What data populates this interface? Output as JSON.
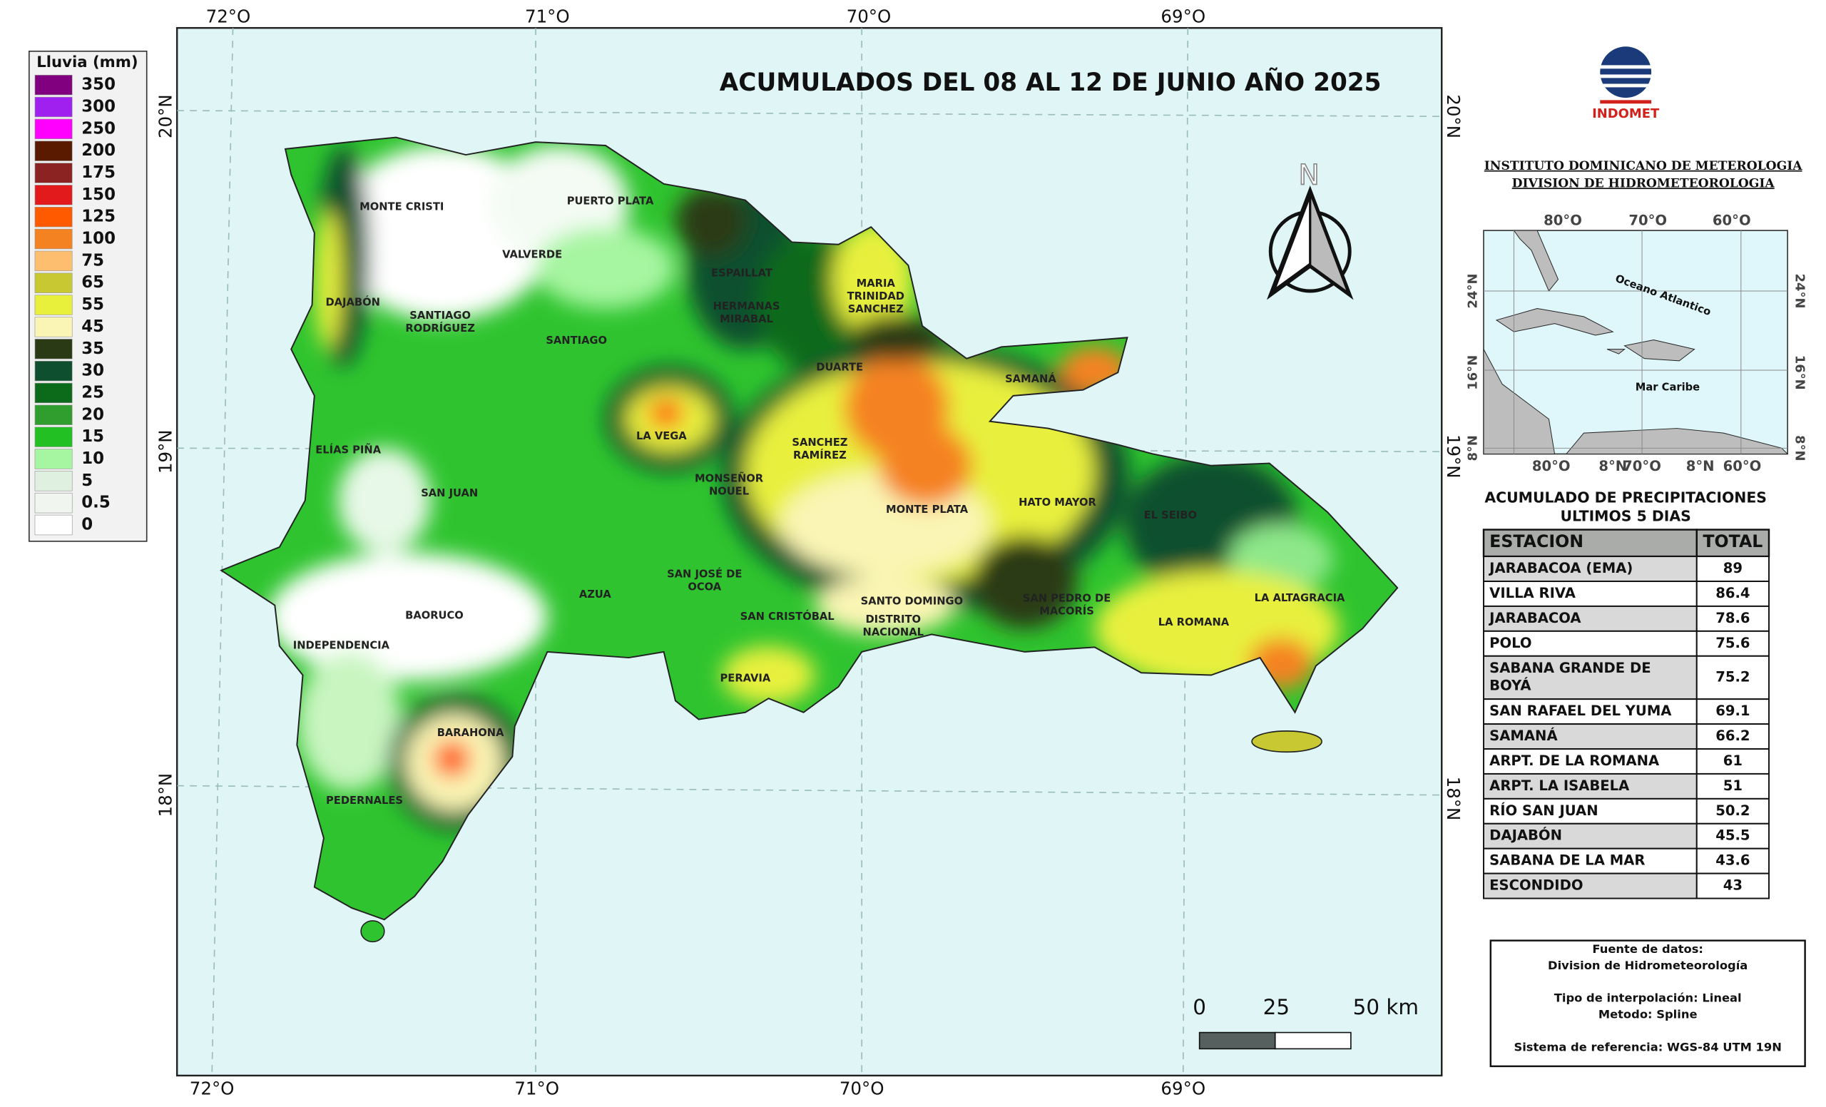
{
  "title": "ACUMULADOS DEL 08 AL 12  DE JUNIO AÑO 2025",
  "legend": {
    "title": "Lluvia (mm)",
    "items": [
      {
        "label": "350",
        "color": "#800080"
      },
      {
        "label": "300",
        "color": "#a020f0"
      },
      {
        "label": "250",
        "color": "#ff00ff"
      },
      {
        "label": "200",
        "color": "#5a1a00"
      },
      {
        "label": "175",
        "color": "#8b2323"
      },
      {
        "label": "150",
        "color": "#e31a1c"
      },
      {
        "label": "125",
        "color": "#ff5a00"
      },
      {
        "label": "100",
        "color": "#f58220"
      },
      {
        "label": "75",
        "color": "#fdbf6f"
      },
      {
        "label": "65",
        "color": "#c8c832"
      },
      {
        "label": "55",
        "color": "#e8f03c"
      },
      {
        "label": "45",
        "color": "#faf5b4"
      },
      {
        "label": "35",
        "color": "#2a3a14"
      },
      {
        "label": "30",
        "color": "#0d4f2e"
      },
      {
        "label": "25",
        "color": "#0c6b1a"
      },
      {
        "label": "20",
        "color": "#2f9e2f"
      },
      {
        "label": "15",
        "color": "#22c022"
      },
      {
        "label": "10",
        "color": "#a6f5a0"
      },
      {
        "label": "5",
        "color": "#e0f0e0"
      },
      {
        "label": "0.5",
        "color": "#f0f5f0"
      },
      {
        "label": "0",
        "color": "#ffffff"
      }
    ]
  },
  "longitude_labels": [
    "72°O",
    "71°O",
    "70°O",
    "69°O"
  ],
  "latitude_labels": [
    "20°N",
    "19°N",
    "18°N"
  ],
  "provinces": [
    [
      "MONTE CRISTI"
    ],
    [
      "PUERTO PLATA"
    ],
    [
      "VALVERDE"
    ],
    [
      "ESPAILLAT"
    ],
    [
      "HERMANAS",
      "MIRABAL"
    ],
    [
      "MARIA",
      "TRINIDAD",
      "SANCHEZ"
    ],
    [
      "DAJABÓN"
    ],
    [
      "SANTIAGO",
      "RODRÍGUEZ"
    ],
    [
      "SANTIAGO"
    ],
    [
      "SAMANÁ"
    ],
    [
      "DUARTE"
    ],
    [
      "LA VEGA"
    ],
    [
      "SANCHEZ",
      "RAMÍREZ"
    ],
    [
      "ELÍAS PIÑA"
    ],
    [
      "MONSEÑOR",
      "NOUEL"
    ],
    [
      "SAN JUAN"
    ],
    [
      "MONTE PLATA"
    ],
    [
      "HATO MAYOR"
    ],
    [
      "EL SEIBO"
    ],
    [
      "SAN JOSÉ DE",
      "OCOA"
    ],
    [
      "AZUA"
    ],
    [
      "BAORUCO"
    ],
    [
      "SANTO DOMINGO"
    ],
    [
      "SAN PEDRO DE",
      "MACORÍS"
    ],
    [
      "LA ALTAGRACIA"
    ],
    [
      "LA ROMANA"
    ],
    [
      "SAN CRISTÓBAL"
    ],
    [
      "DISTRITO",
      "NACIONAL"
    ],
    [
      "INDEPENDENCIA"
    ],
    [
      "PERAVIA"
    ],
    [
      "BARAHONA"
    ],
    [
      "PEDERNALES"
    ]
  ],
  "north_arrow": "N",
  "scale_bar": [
    "0",
    "25",
    "50 km"
  ],
  "logo": "INDOMET",
  "institution": [
    "INSTITUTO DOMINICANO DE METEROLOGIA",
    "DIVISION DE HIDROMETEOROLOGIA"
  ],
  "inset_map": {
    "top_labels": [
      "80°O",
      "70°O",
      "60°O"
    ],
    "bottom_labels": [
      "80°O",
      "8°N",
      "70°O",
      "8°N",
      "60°O"
    ],
    "side_labels": [
      "24°N",
      "16°N",
      "8°N"
    ],
    "places": [
      "Oceano Atlantico",
      "Mar Caribe"
    ]
  },
  "table": {
    "title": [
      "ACUMULADO DE PRECIPITACIONES",
      "ULTIMOS 5 DIAS"
    ],
    "header": [
      "ESTACION",
      "TOTAL"
    ],
    "rows": [
      [
        [
          "JARABACOA (EMA)"
        ],
        "89"
      ],
      [
        [
          "VILLA RIVA"
        ],
        "86.4"
      ],
      [
        [
          "JARABACOA"
        ],
        "78.6"
      ],
      [
        [
          "POLO"
        ],
        "75.6"
      ],
      [
        [
          "SABANA GRANDE DE",
          "BOYÁ"
        ],
        "75.2"
      ],
      [
        [
          "SAN RAFAEL DEL YUMA"
        ],
        "69.1"
      ],
      [
        [
          "SAMANÁ"
        ],
        "66.2"
      ],
      [
        [
          "ARPT. DE LA ROMANA"
        ],
        "61"
      ],
      [
        [
          "ARPT. LA ISABELA"
        ],
        "51"
      ],
      [
        [
          "RÍO SAN JUAN"
        ],
        "50.2"
      ],
      [
        [
          "DAJABÓN"
        ],
        "45.5"
      ],
      [
        [
          "SABANA DE LA MAR"
        ],
        "43.6"
      ],
      [
        [
          "ESCONDIDO"
        ],
        "43"
      ]
    ]
  },
  "info": [
    "Fuente de datos:",
    "Division de Hidrometeorología",
    "Tipo de interpolación: Lineal",
    "Metodo: Spline",
    "Sistema de referencia: WGS-84 UTM 19N"
  ]
}
